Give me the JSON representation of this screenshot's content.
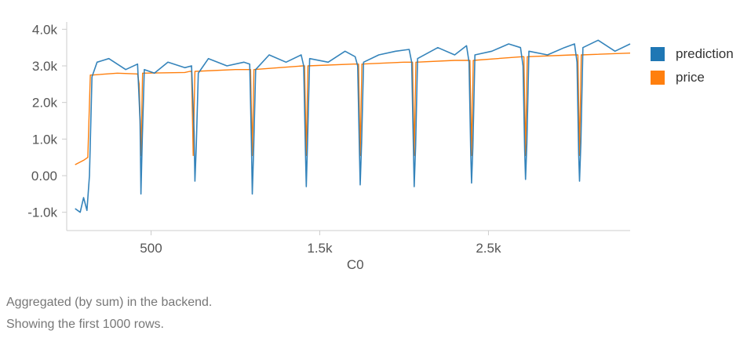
{
  "chart_data": {
    "type": "line",
    "xlabel": "_C0",
    "ylabel": "",
    "xlim": [
      0,
      3340
    ],
    "ylim": [
      -1500,
      4200
    ],
    "x_ticks": [
      {
        "value": 500,
        "label": "500"
      },
      {
        "value": 1500,
        "label": "1.5k"
      },
      {
        "value": 2500,
        "label": "2.5k"
      }
    ],
    "y_ticks": [
      {
        "value": -1000,
        "label": "-1.0k"
      },
      {
        "value": 0,
        "label": "0.00"
      },
      {
        "value": 1000,
        "label": "1.0k"
      },
      {
        "value": 2000,
        "label": "2.0k"
      },
      {
        "value": 3000,
        "label": "3.0k"
      },
      {
        "value": 4000,
        "label": "4.0k"
      }
    ],
    "grid": false,
    "legend_position": "right",
    "dip_x": [
      440,
      760,
      1100,
      1420,
      1740,
      2060,
      2400,
      2720,
      3040
    ],
    "series": [
      {
        "name": "prediction",
        "color": "#1f77b4",
        "x": [
          50,
          80,
          100,
          120,
          135,
          150,
          180,
          250,
          350,
          420,
          435,
          440,
          448,
          460,
          520,
          600,
          700,
          740,
          755,
          760,
          768,
          780,
          840,
          950,
          1050,
          1085,
          1095,
          1100,
          1108,
          1120,
          1200,
          1300,
          1390,
          1405,
          1415,
          1420,
          1428,
          1440,
          1550,
          1650,
          1710,
          1725,
          1735,
          1740,
          1748,
          1760,
          1850,
          1950,
          2030,
          2045,
          2055,
          2060,
          2068,
          2080,
          2200,
          2300,
          2370,
          2385,
          2395,
          2400,
          2408,
          2420,
          2520,
          2620,
          2690,
          2705,
          2715,
          2720,
          2728,
          2740,
          2850,
          2950,
          3010,
          3025,
          3035,
          3040,
          3048,
          3060,
          3150,
          3250,
          3340
        ],
        "y": [
          -900,
          -1000,
          -600,
          -950,
          0,
          2700,
          3100,
          3200,
          2900,
          3050,
          1500,
          -500,
          1000,
          2900,
          2800,
          3100,
          2950,
          3000,
          1200,
          -150,
          800,
          2800,
          3200,
          3000,
          3100,
          3050,
          900,
          -500,
          700,
          2900,
          3300,
          3100,
          3300,
          3000,
          700,
          -300,
          1000,
          3200,
          3100,
          3400,
          3250,
          3000,
          700,
          -250,
          900,
          3100,
          3300,
          3400,
          3450,
          3100,
          800,
          -300,
          800,
          3200,
          3500,
          3300,
          3550,
          3100,
          600,
          -200,
          800,
          3300,
          3400,
          3600,
          3500,
          3000,
          700,
          -100,
          900,
          3400,
          3300,
          3500,
          3600,
          3100,
          600,
          -150,
          900,
          3500,
          3700,
          3400,
          3600
        ]
      },
      {
        "name": "price",
        "color": "#ff7f0e",
        "x": [
          50,
          100,
          125,
          140,
          150,
          300,
          420,
          430,
          440,
          450,
          700,
          730,
          740,
          750,
          760,
          1000,
          1090,
          1100,
          1110,
          1400,
          1410,
          1420,
          1430,
          1700,
          1730,
          1740,
          1750,
          2000,
          2050,
          2060,
          2070,
          2300,
          2390,
          2400,
          2410,
          2700,
          2710,
          2720,
          2730,
          3000,
          3030,
          3040,
          3050,
          3340
        ],
        "y": [
          300,
          420,
          500,
          2750,
          2750,
          2800,
          2780,
          2500,
          550,
          2800,
          2820,
          2850,
          2850,
          550,
          2850,
          2900,
          2900,
          550,
          2900,
          3000,
          3000,
          550,
          3000,
          3050,
          3050,
          550,
          3050,
          3100,
          3100,
          550,
          3100,
          3150,
          3150,
          550,
          3150,
          3250,
          3250,
          550,
          3250,
          3300,
          3300,
          550,
          3300,
          3350
        ]
      }
    ]
  },
  "notes": {
    "line1": "Aggregated (by sum) in the backend.",
    "line2": "Showing the first 1000 rows."
  }
}
